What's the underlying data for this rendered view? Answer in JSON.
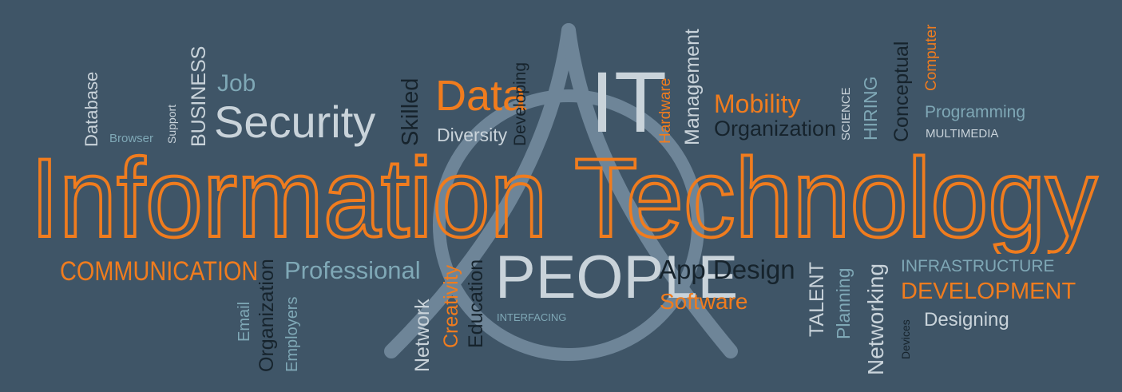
{
  "banner": {
    "title": "Information Technology",
    "colors": {
      "background": "#3f5567",
      "accent": "#f07c1e",
      "light": "#c9d3da",
      "teal": "#7fa8b6",
      "dark": "#16232c",
      "logo": "#6e8598"
    },
    "logo": "a-triangle-circle-logo-icon",
    "words": {
      "database": "Database",
      "browser": "Browser",
      "support": "Support",
      "business": "BUSINESS",
      "job": "Job",
      "security": "Security",
      "skilled": "Skilled",
      "data": "Data",
      "diversity": "Diversity",
      "developing": "Developing",
      "it": "IT",
      "hardware": "Hardware",
      "management": "Management",
      "mobility": "Mobility",
      "organization_top": "Organization",
      "science": "SCIENCE",
      "hiring": "HIRING",
      "conceptual": "Conceptual",
      "computer": "Computer",
      "programming": "Programming",
      "multimedia": "MULTIMEDIA",
      "communication": "COMMUNICATION",
      "email": "Email",
      "organization_bottom": "Organization",
      "employers": "Employers",
      "professional": "Professional",
      "network": "Network",
      "creativity": "Creativity",
      "education": "Education",
      "people": "PEOPLE",
      "interfacing": "INTERFACING",
      "app_design": "App Design",
      "software": "Software",
      "talent": "TALENT",
      "planning": "Planning",
      "networking": "Networking",
      "devices": "Devices",
      "infrastructure": "INFRASTRUCTURE",
      "development": "DEVELOPMENT",
      "designing": "Designing"
    }
  }
}
